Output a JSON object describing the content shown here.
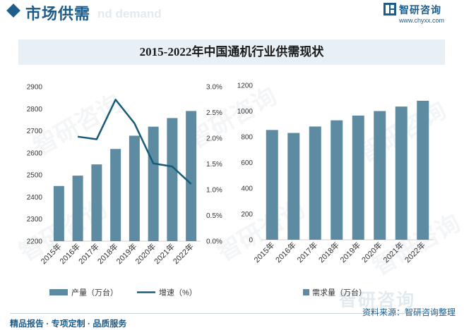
{
  "header": {
    "title": "市场供需",
    "ghost_text": "nd demand"
  },
  "brand": {
    "name": "智研咨询",
    "url": "www.chyxx.com",
    "ghost_name": "智研咨询",
    "logo_icon": "zhiyan-logo-icon"
  },
  "watermark_text": "智研咨询",
  "colors": {
    "bar": "#5d8ca2",
    "line": "#185b78",
    "brand": "#1c5c8a",
    "title_band": "#e8f0f6"
  },
  "chart_data": [
    {
      "type": "bar+line",
      "title": "2015-2022年中国通机行业供需现状",
      "categories": [
        "2015年",
        "2016年",
        "2017年",
        "2018年",
        "2019年",
        "2020年",
        "2021年",
        "2022年"
      ],
      "series": [
        {
          "name": "产量（万台）",
          "type": "bar",
          "axis": "left",
          "values": [
            2450,
            2497,
            2548,
            2618,
            2678,
            2719,
            2758,
            2790
          ]
        },
        {
          "name": "增速（%）",
          "type": "line",
          "axis": "right",
          "values": [
            null,
            2.03,
            1.98,
            2.75,
            2.29,
            1.51,
            1.45,
            1.11
          ]
        }
      ],
      "left_axis": {
        "ylim": [
          2200,
          2900
        ],
        "ticks": [
          "2200",
          "2300",
          "2400",
          "2500",
          "2600",
          "2700",
          "2800",
          "2900"
        ]
      },
      "right_axis": {
        "ylim": [
          0,
          3.0
        ],
        "ticks": [
          "0.0%",
          "0.5%",
          "1.0%",
          "1.5%",
          "2.0%",
          "2.5%",
          "3.0%"
        ]
      },
      "legend": [
        {
          "label": "产量（万台）",
          "marker": "bar"
        },
        {
          "label": "增速（%）",
          "marker": "line"
        }
      ],
      "legend_position": "bottom",
      "grid": false
    },
    {
      "type": "bar",
      "categories": [
        "2015年",
        "2016年",
        "2017年",
        "2018年",
        "2019年",
        "2020年",
        "2021年",
        "2022年"
      ],
      "series": [
        {
          "name": "需求量（万台）",
          "values": [
            853,
            830,
            880,
            928,
            965,
            1000,
            1035,
            1080
          ]
        }
      ],
      "ylim": [
        0,
        1200
      ],
      "ticks": [
        "0",
        "200",
        "400",
        "600",
        "800",
        "1000",
        "1200"
      ],
      "legend": [
        {
          "label": "需求量（万台）",
          "marker": "bar"
        }
      ],
      "legend_position": "bottom",
      "grid": false
    }
  ],
  "footer": {
    "left": "精品报告 · 专项定制 · 品质服务",
    "right": "资料来源：智研咨询整理"
  }
}
